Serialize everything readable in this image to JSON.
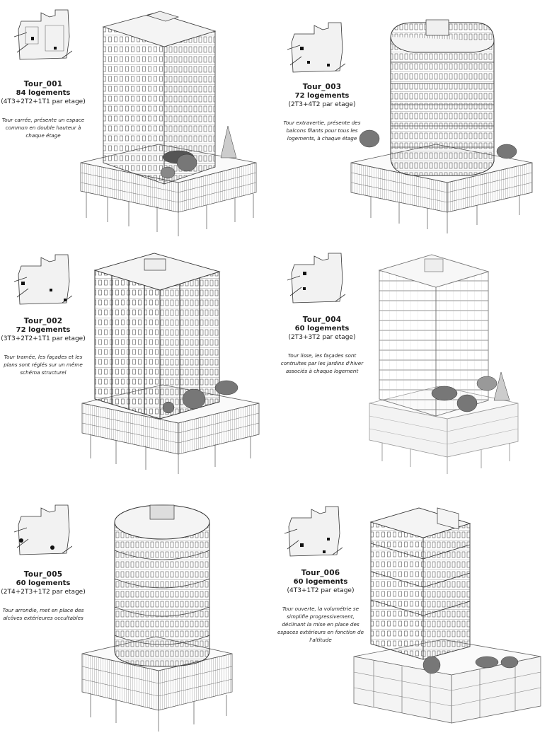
{
  "towers": [
    {
      "title": "Tour_001",
      "units": "84 logements",
      "mix": "(4T3+2T2+1T1 par etage)",
      "desc": "Tour carrée, présente un espace commun en double hauteur à chaque étage"
    },
    {
      "title": "Tour_003",
      "units": "72 logements",
      "mix": "(2T3+4T2 par etage)",
      "desc": "Tour extravertie, présente des balcons filants pour tous les logements, à chaque étage"
    },
    {
      "title": "Tour_002",
      "units": "72 logements",
      "mix": "(3T3+2T2+1T1 par etage)",
      "desc": "Tour tramée, les façades et les plans sont réglés sur un même schéma structurel"
    },
    {
      "title": "Tour_004",
      "units": "60 logements",
      "mix": "(2T3+3T2 par etage)",
      "desc": "Tour lisse, les façades sont contruites par les jardins d'hiver associés à chaque logement"
    },
    {
      "title": "Tour_005",
      "units": "60 logements",
      "mix": "(2T4+2T3+1T2 par etage)",
      "desc": "Tour arrondie, met en place des alcôves extérieures occultables"
    },
    {
      "title": "Tour_006",
      "units": "60 logements",
      "mix": "(4T3+1T2 par etage)",
      "desc": "Tour ouverte, la volumétrie se simplifie progressivement, déclinant la mise en place des espaces extérieurs en fonction de l'altitude"
    }
  ]
}
